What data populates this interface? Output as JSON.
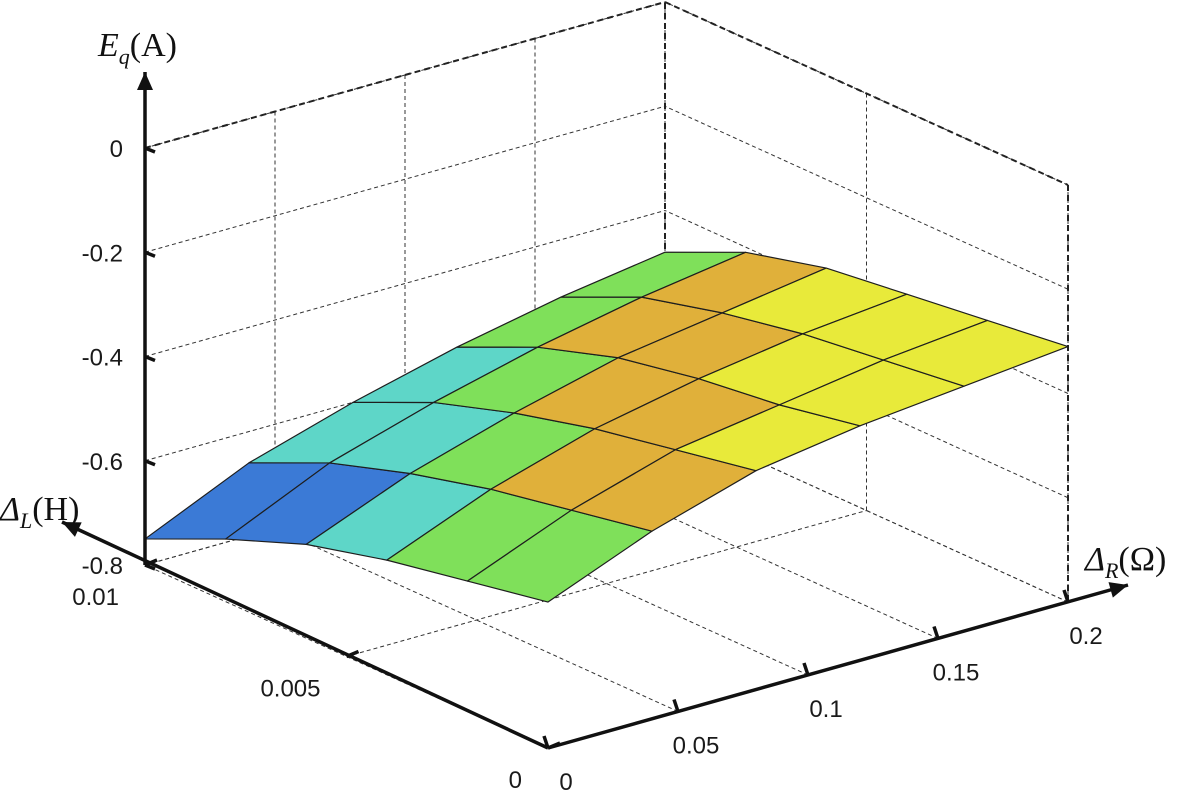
{
  "chart_data": {
    "type": "surface3d",
    "title": "",
    "zlabel": {
      "symbol": "E",
      "sub": "q",
      "unit": "(A)"
    },
    "xlabel": {
      "symbol": "Δ",
      "sub": "R",
      "unit": "(Ω)"
    },
    "ylabel": {
      "symbol": "Δ",
      "sub": "L",
      "unit": "(H)"
    },
    "x_ticks": [
      "0",
      "0.05",
      "0.1",
      "0.15",
      "0.2"
    ],
    "y_ticks": [
      "0",
      "0.005",
      "0.01"
    ],
    "z_ticks": [
      "0",
      "-0.2",
      "-0.4",
      "-0.6",
      "-0.8"
    ],
    "xlim": [
      0,
      0.2
    ],
    "ylim": [
      0,
      0.01
    ],
    "zlim": [
      -0.8,
      0
    ],
    "grid": true,
    "surface": {
      "x": [
        0,
        0.04,
        0.08,
        0.12,
        0.16,
        0.2
      ],
      "y": [
        0,
        0.002,
        0.004,
        0.006,
        0.008,
        0.01
      ],
      "z": [
        [
          -0.52,
          -0.44,
          -0.38,
          -0.35,
          -0.33,
          -0.31
        ],
        [
          -0.55,
          -0.47,
          -0.41,
          -0.38,
          -0.35,
          -0.33
        ],
        [
          -0.58,
          -0.5,
          -0.44,
          -0.4,
          -0.37,
          -0.35
        ],
        [
          -0.62,
          -0.54,
          -0.48,
          -0.43,
          -0.4,
          -0.37
        ],
        [
          -0.68,
          -0.59,
          -0.53,
          -0.48,
          -0.44,
          -0.41
        ],
        [
          -0.75,
          -0.66,
          -0.6,
          -0.55,
          -0.51,
          -0.48
        ]
      ]
    },
    "colormap": [
      "#3f2fa0",
      "#3b7ad6",
      "#5ed6c8",
      "#7fe05a",
      "#e0b03a",
      "#e8ea3a"
    ]
  }
}
